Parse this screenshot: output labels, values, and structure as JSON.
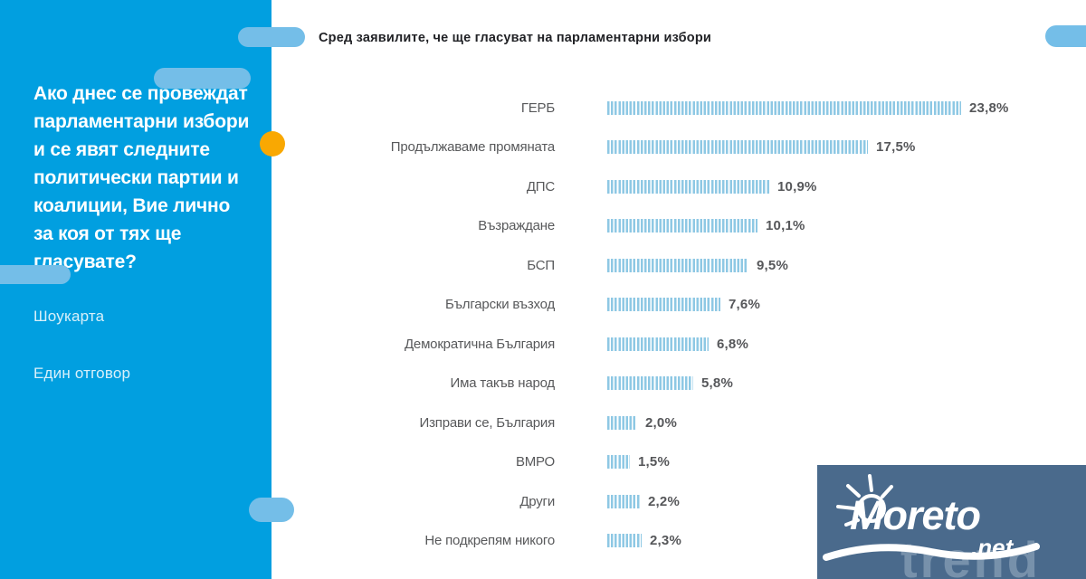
{
  "sidebar": {
    "question": "Ако днес се провеждат парламентарни избори и се явят следните политически партии и коалиции, Вие лично за коя от тях ще гласувате?",
    "showcard": "Шоукарта",
    "answer_mode": "Един отговор"
  },
  "header": {
    "title": "Сред заявилите, че ще гласуват на парламентарни избори"
  },
  "chart_data": {
    "type": "bar",
    "orientation": "horizontal",
    "title": "Сред заявилите, че ще гласуват на парламентарни избори",
    "categories": [
      "ГЕРБ",
      "Продължаваме промяната",
      "ДПС",
      "Възраждане",
      "БСП",
      "Български възход",
      "Демократична България",
      "Има такъв народ",
      "Изправи се, България",
      "ВМРО",
      "Други",
      "Не подкрепям никого"
    ],
    "values": [
      23.8,
      17.5,
      10.9,
      10.1,
      9.5,
      7.6,
      6.8,
      5.8,
      2.0,
      1.5,
      2.2,
      2.3
    ],
    "value_labels": [
      "23,8%",
      "17,5%",
      "10,9%",
      "10,1%",
      "9,5%",
      "7,6%",
      "6,8%",
      "5,8%",
      "2,0%",
      "1,5%",
      "2,2%",
      "2,3%"
    ],
    "xlim": [
      0,
      25
    ],
    "grid": false,
    "legend": false,
    "bar_style": "vertical-stripe-hatch",
    "bar_color": "#8EC8E4",
    "label_color": "#58595B",
    "value_color": "#56575A"
  },
  "logo": {
    "name": "Moreto",
    "tld": ".net"
  },
  "watermark": {
    "text": "trend"
  },
  "colors": {
    "sidebar_bg": "#019FE0",
    "pill": "#74BEE8",
    "accent_dot": "#F9A802",
    "logo_bg": "#4A6A8C",
    "title_color": "#212226"
  }
}
